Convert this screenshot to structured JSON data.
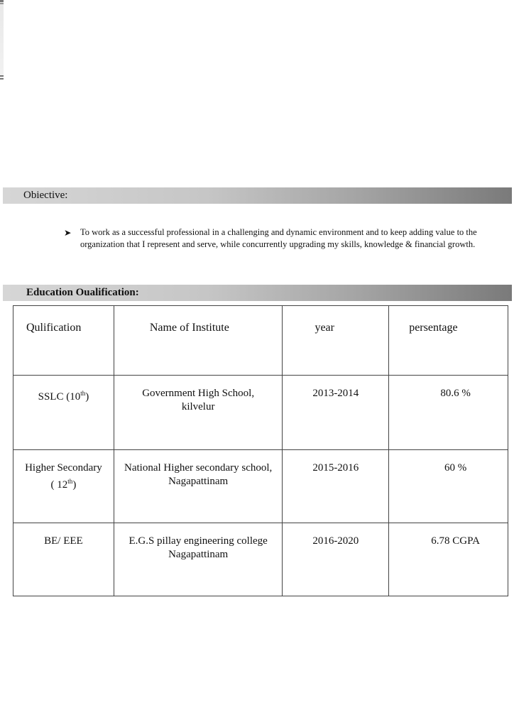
{
  "objective": {
    "heading": "Obiective:",
    "bullet_icon": "arrowhead-bullet",
    "text": "To work as a successful professional in a challenging and dynamic environment and to  keep  adding value to  the organization that I represent and serve, while concurrently  upgrading my skills, knowledge & financial growth."
  },
  "education": {
    "heading": "Education Oualification:",
    "headers": [
      "Qulification",
      "Name of Institute",
      "year",
      "persentage"
    ],
    "rows": [
      {
        "qualification": "SSLC (10",
        "qual_sup": "th",
        "qual_end": ")",
        "institute_line1": "Government High School,",
        "institute_line2": "kilvelur",
        "year": "2013-2014",
        "percentage": "80.6 %"
      },
      {
        "qualification": "Higher Secondary",
        "qual_line2": "( 12",
        "qual_sup": "th",
        "qual_end": ")",
        "institute_line1": "National Higher secondary school,",
        "institute_line2": "Nagapattinam",
        "year": "2015-2016",
        "percentage": "60 %"
      },
      {
        "qualification": "BE/ EEE",
        "institute_line1": "E.G.S pillay engineering college",
        "institute_line2": "Nagapattinam",
        "year": "2016-2020",
        "percentage": "6.78 CGPA"
      }
    ]
  }
}
